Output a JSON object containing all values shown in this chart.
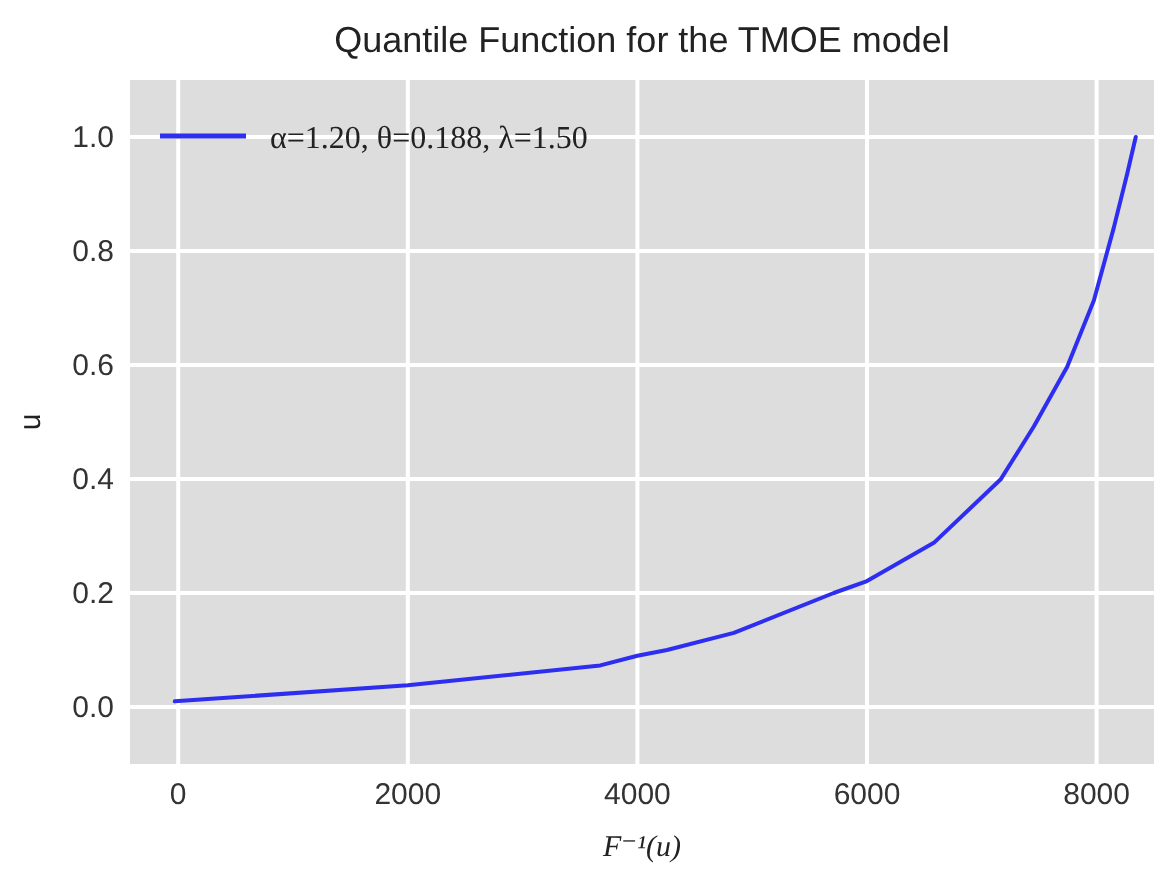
{
  "chart_data": {
    "type": "line",
    "title": "Quantile Function for the TMOE model",
    "xlabel": "F⁻¹(u)",
    "ylabel": "u",
    "xlim": [
      -420,
      8500
    ],
    "ylim": [
      -0.1,
      1.1
    ],
    "xticks": [
      0,
      2000,
      4000,
      6000,
      8000
    ],
    "yticks": [
      {
        "value": 0,
        "label": "0.0"
      },
      {
        "value": 0.2,
        "label": "0.2"
      },
      {
        "value": 0.4,
        "label": "0.4"
      },
      {
        "value": 0.6,
        "label": "0.6"
      },
      {
        "value": 0.8,
        "label": "0.8"
      },
      {
        "value": 1,
        "label": "1.0"
      }
    ],
    "grid": true,
    "legend": "top left",
    "line_style": "solid",
    "marker": "none",
    "series": [
      {
        "name": "α=1.20, θ=0.188, λ=1.50",
        "color": "#2e2ef0",
        "x": [
          -30,
          2000,
          3677,
          4000,
          4258,
          4840,
          5710,
          6000,
          6582,
          7163,
          7453,
          7744,
          7976,
          8150,
          8266,
          8341
        ],
        "values": [
          0.01,
          0.038,
          0.073,
          0.09,
          0.1,
          0.13,
          0.2,
          0.221,
          0.288,
          0.399,
          0.492,
          0.597,
          0.713,
          0.841,
          0.935,
          1.0
        ]
      }
    ]
  }
}
